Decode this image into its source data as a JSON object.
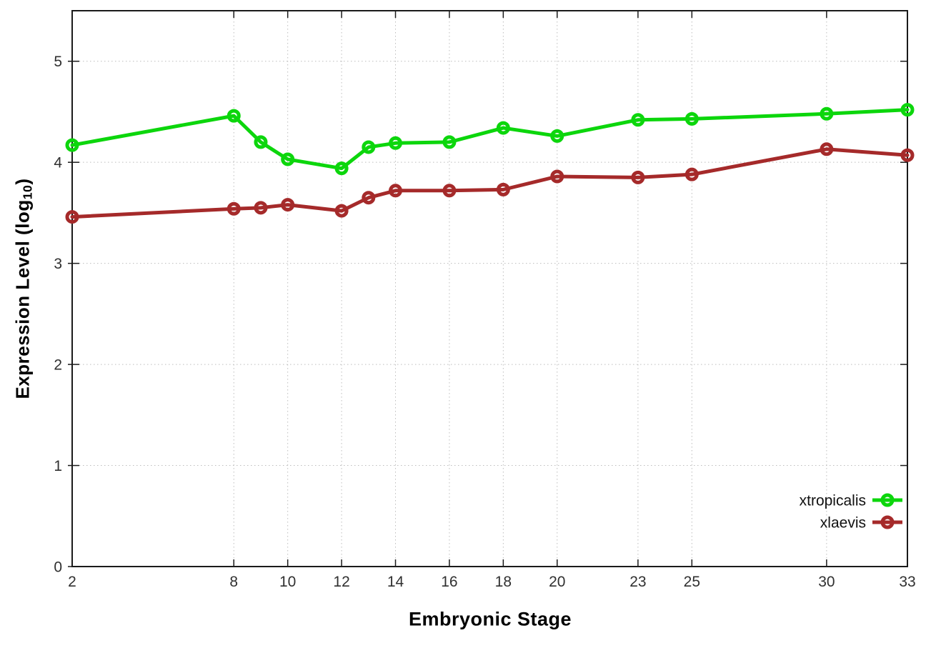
{
  "chart_data": {
    "type": "line",
    "title": "",
    "xlabel": "Embryonic Stage",
    "ylabel_main": "Expression Level (log",
    "ylabel_sub": "10",
    "ylabel_close": ")",
    "x": [
      2,
      8,
      9,
      10,
      12,
      13,
      14,
      16,
      18,
      20,
      23,
      25,
      30,
      33
    ],
    "series": [
      {
        "name": "xtropicalis",
        "color": "#0cd60c",
        "values": [
          4.17,
          4.46,
          4.2,
          4.03,
          3.94,
          4.15,
          4.19,
          4.2,
          4.34,
          4.26,
          4.42,
          4.43,
          4.48,
          4.52
        ]
      },
      {
        "name": "xlaevis",
        "color": "#a52a2a",
        "values": [
          3.46,
          3.54,
          3.55,
          3.58,
          3.52,
          3.65,
          3.72,
          3.72,
          3.73,
          3.86,
          3.85,
          3.88,
          4.13,
          4.07
        ]
      }
    ],
    "xlim": [
      2,
      33
    ],
    "ylim": [
      0,
      5.5
    ],
    "xticks": [
      2,
      8,
      10,
      12,
      14,
      16,
      18,
      20,
      23,
      25,
      30,
      33
    ],
    "yticks": [
      0,
      1,
      2,
      3,
      4,
      5
    ],
    "grid": true,
    "legend_position": "bottom-right",
    "marker": "open-circle",
    "colors": {
      "background": "#ffffff",
      "grid": "#bdbdbd",
      "axis": "#1a1a1a",
      "tick_label": "#303030",
      "legend_text": "#111111"
    }
  }
}
